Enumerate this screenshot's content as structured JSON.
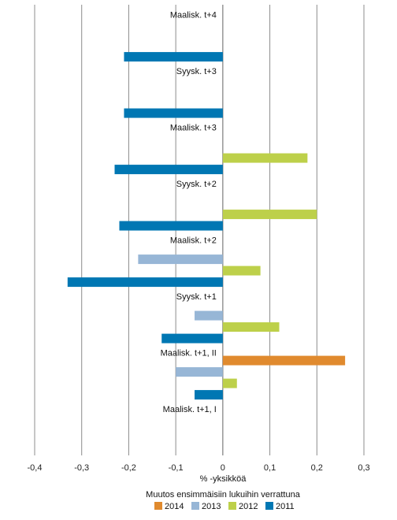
{
  "chart_data": {
    "type": "bar",
    "orientation": "horizontal",
    "categories": [
      "Maalisk. t+4",
      "Syysk. t+3",
      "Maalisk. t+3",
      "Syysk. t+2",
      "Maalisk. t+2",
      "Syysk. t+1",
      "Maalisk. t+1, II",
      "Maalisk. t+1, I"
    ],
    "series": [
      {
        "name": "2014",
        "color": "#e08a2e",
        "values": [
          null,
          null,
          null,
          null,
          null,
          null,
          0.26,
          null
        ]
      },
      {
        "name": "2013",
        "color": "#97b6d6",
        "values": [
          null,
          null,
          null,
          null,
          -0.18,
          -0.06,
          -0.1,
          null
        ]
      },
      {
        "name": "2012",
        "color": "#bdd04a",
        "values": [
          null,
          null,
          0.18,
          0.2,
          0.08,
          0.12,
          0.03,
          null
        ]
      },
      {
        "name": "2011",
        "color": "#0077b3",
        "values": [
          -0.21,
          -0.21,
          -0.23,
          -0.22,
          -0.33,
          -0.13,
          -0.06,
          null
        ]
      }
    ],
    "xlim": [
      -0.4,
      0.3
    ],
    "xticks": [
      "-0,4",
      "-0,3",
      "-0,2",
      "-0,1",
      "0",
      "0,1",
      "0,2",
      "0,3"
    ],
    "xtick_values": [
      -0.4,
      -0.3,
      -0.2,
      -0.1,
      0,
      0.1,
      0.2,
      0.3
    ],
    "xlabel": "% -yksikköä",
    "subtitle": "Muutos ensimmäisiin lukuihin verrattuna",
    "grid": "vertical",
    "legend_position": "bottom"
  }
}
